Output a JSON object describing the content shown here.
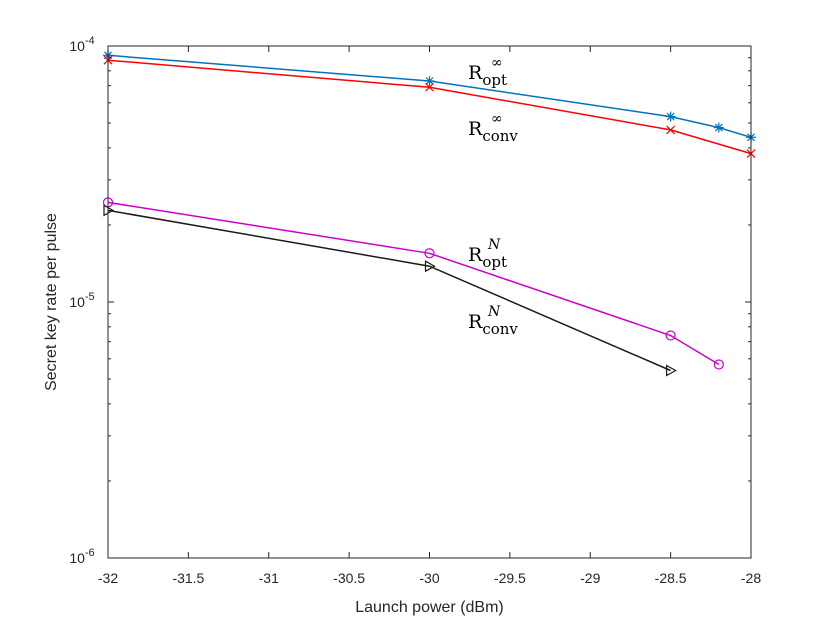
{
  "chart_data": {
    "type": "line",
    "title": "",
    "xlabel": "Launch power (dBm)",
    "ylabel": "Secret key rate per pulse",
    "xlim": [
      -32,
      -28
    ],
    "ylim": [
      1e-06,
      0.0001
    ],
    "yscale": "log",
    "grid": false,
    "xticks": [
      -32,
      -31.5,
      -31,
      -30.5,
      -30,
      -29.5,
      -29,
      -28.5,
      -28
    ],
    "xtick_labels": [
      "-32",
      "-31.5",
      "-31",
      "-30.5",
      "-30",
      "-29.5",
      "-29",
      "-28.5",
      "-28"
    ],
    "yticks": [
      {
        "value": 1e-06,
        "base": "10",
        "exp": "-6"
      },
      {
        "value": 1e-05,
        "base": "10",
        "exp": "-5"
      },
      {
        "value": 0.0001,
        "base": "10",
        "exp": "-4"
      }
    ],
    "series": [
      {
        "name": "R_opt^inf",
        "color": "#0072BD",
        "marker": "asterisk",
        "x": [
          -32,
          -30,
          -28.5,
          -28.2,
          -28
        ],
        "y": [
          9.2e-05,
          7.3e-05,
          5.3e-05,
          4.8e-05,
          4.4e-05
        ]
      },
      {
        "name": "R_conv^inf",
        "color": "#FF0000",
        "marker": "x",
        "x": [
          -32,
          -30,
          -28.5,
          -28
        ],
        "y": [
          8.8e-05,
          6.9e-05,
          4.7e-05,
          3.8e-05
        ]
      },
      {
        "name": "R_opt^N",
        "color": "#CC00CC",
        "marker": "circle",
        "x": [
          -32,
          -30,
          -28.5,
          -28.2
        ],
        "y": [
          2.45e-05,
          1.55e-05,
          7.4e-06,
          5.7e-06
        ]
      },
      {
        "name": "R_conv^N",
        "color": "#1A1A1A",
        "marker": "triangle-right",
        "x": [
          -32,
          -30,
          -28.5
        ],
        "y": [
          2.28e-05,
          1.38e-05,
          5.4e-06
        ]
      }
    ],
    "annotations": [
      {
        "id": "ropt-inf",
        "base": "R",
        "sub": "opt",
        "sup": "∞"
      },
      {
        "id": "rconv-inf",
        "base": "R",
        "sub": "conv",
        "sup": "∞"
      },
      {
        "id": "ropt-n",
        "base": "R",
        "sub": "opt",
        "sup": "N"
      },
      {
        "id": "rconv-n",
        "base": "R",
        "sub": "conv",
        "sup": "N"
      }
    ]
  }
}
